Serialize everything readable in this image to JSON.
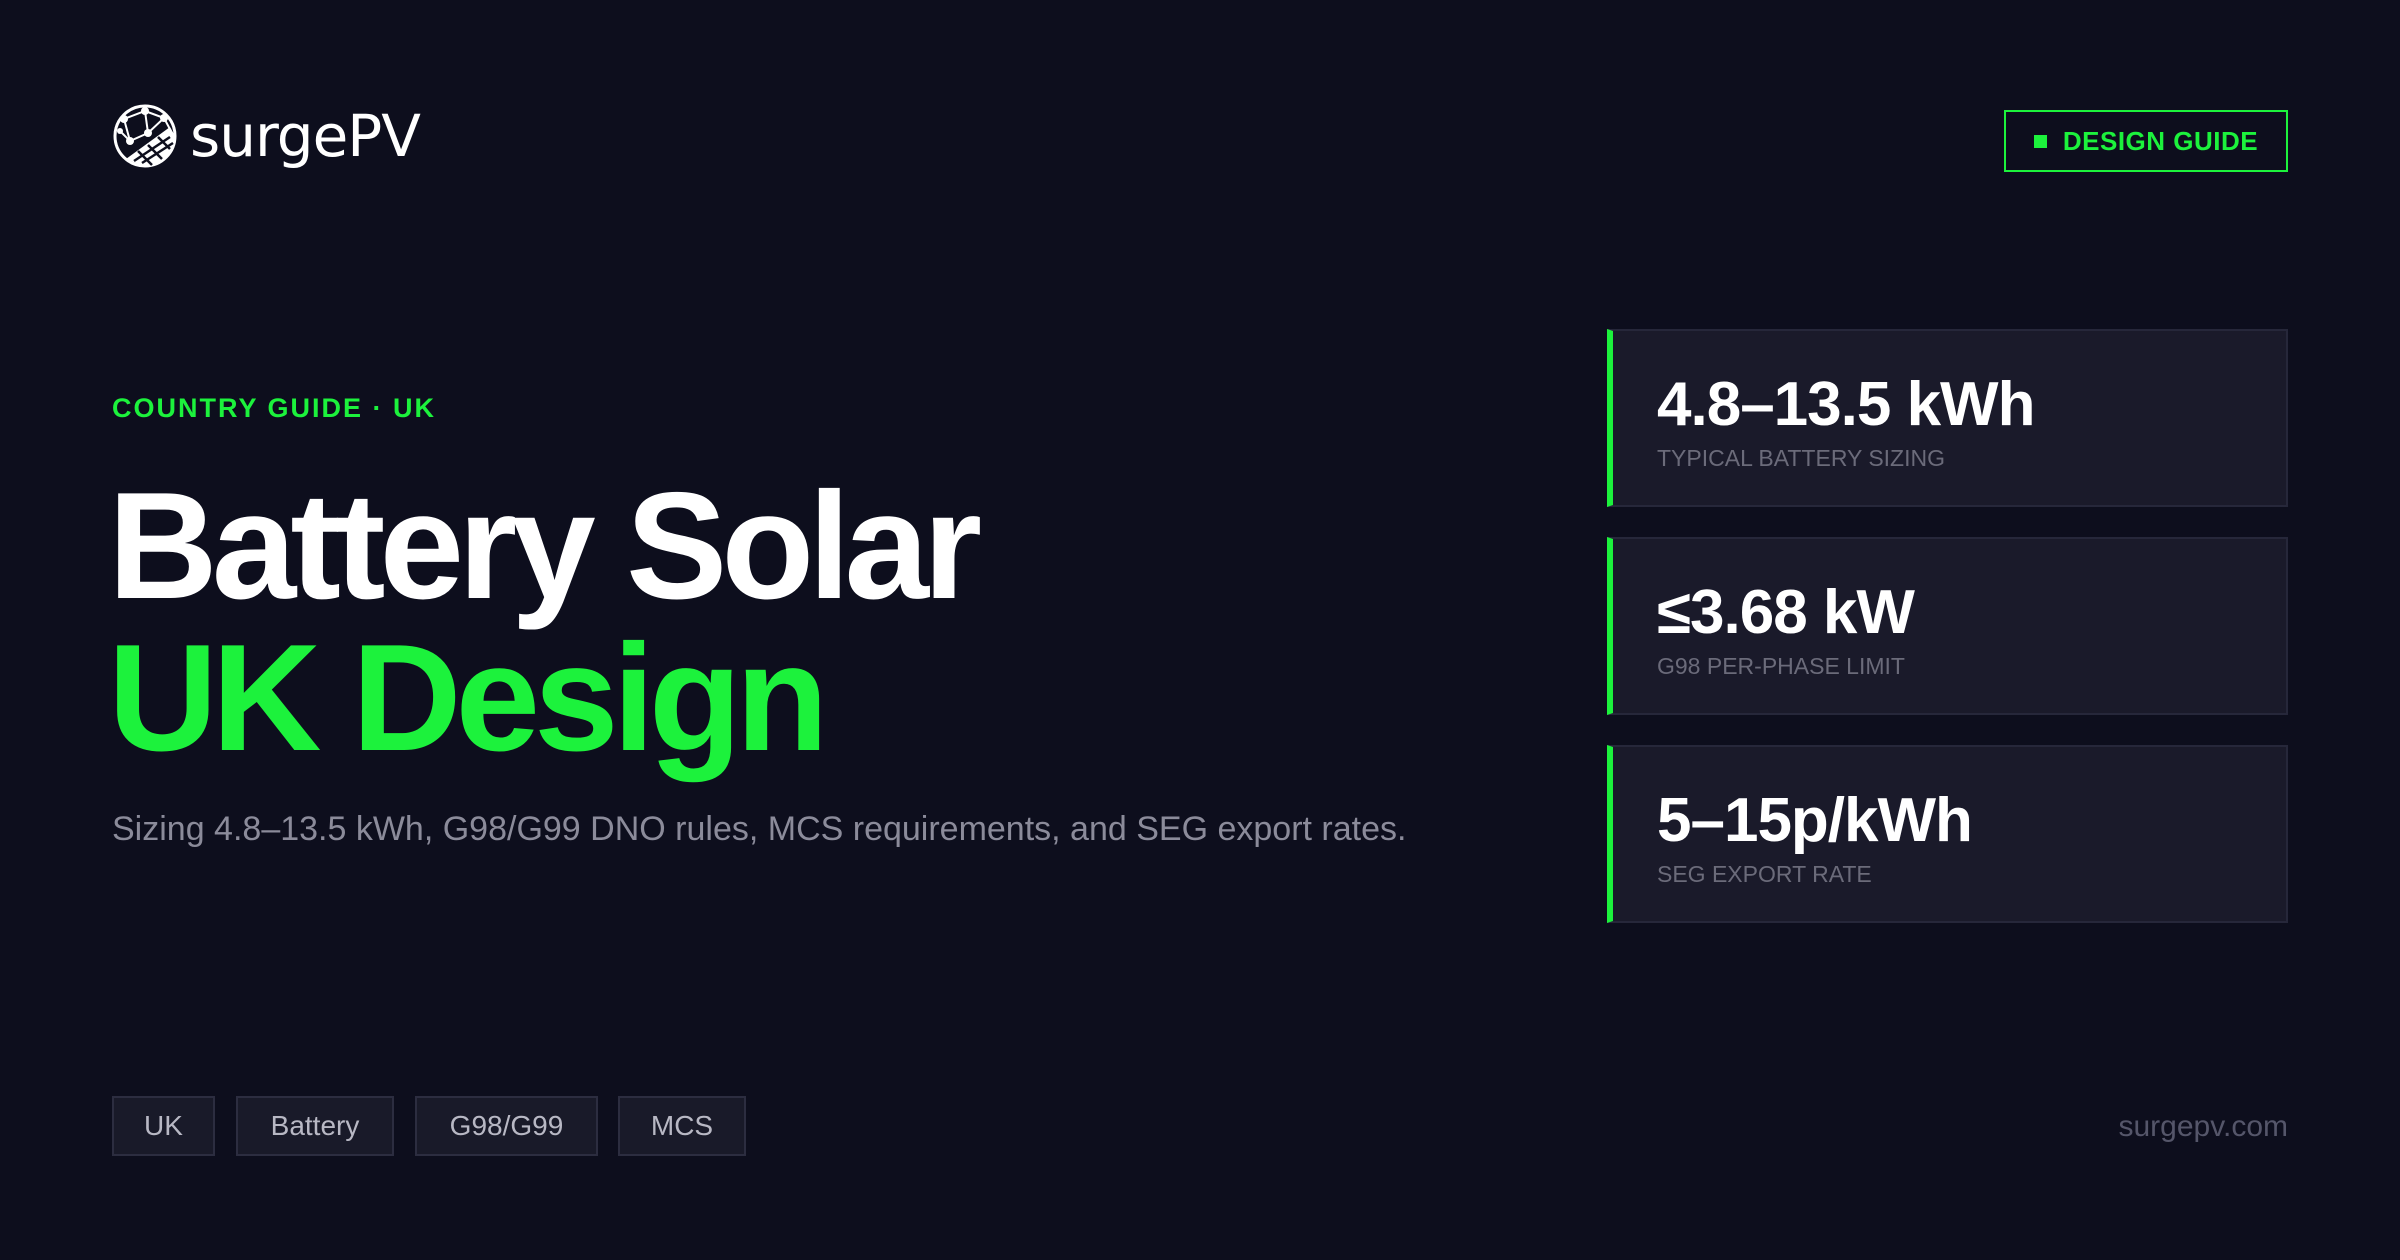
{
  "brand": {
    "name": "surgePV",
    "logo_icon": "globe-solar-panel-icon"
  },
  "badge": {
    "label": "DESIGN GUIDE",
    "icon": "square-icon"
  },
  "hero": {
    "eyebrow": "COUNTRY GUIDE · UK",
    "title_line1": "Battery Solar",
    "title_line2": "UK Design",
    "subtitle": "Sizing 4.8–13.5 kWh, G98/G99 DNO rules, MCS requirements, and SEG export rates."
  },
  "stats": [
    {
      "value": "4.8–13.5 kWh",
      "label": "TYPICAL BATTERY SIZING"
    },
    {
      "value": "≤3.68 kW",
      "label": "G98 PER-PHASE LIMIT"
    },
    {
      "value": "5–15p/kWh",
      "label": "SEG EXPORT RATE"
    }
  ],
  "tags": [
    "UK",
    "Battery",
    "G98/G99",
    "MCS"
  ],
  "footer": {
    "site": "surgepv.com"
  },
  "colors": {
    "background": "#0d0e1d",
    "accent": "#1cf23c",
    "card": "#1a1a2a"
  }
}
